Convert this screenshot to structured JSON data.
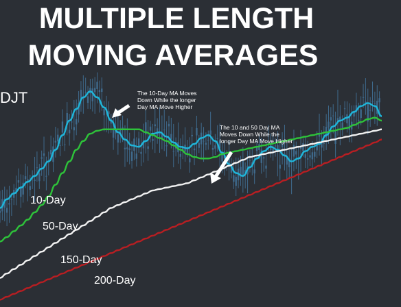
{
  "title_line1": "MULTIPLE LENGTH",
  "title_line2": "MOVING AVERAGES",
  "ticker": "DJT",
  "chart_data": {
    "type": "line",
    "title": "MULTIPLE LENGTH MOVING AVERAGES",
    "xlabel": "",
    "ylabel": "",
    "grid": false,
    "legend": "none",
    "colors": {
      "background": "#2b2f35",
      "candles": "#3f6a8c",
      "ma10": "#1fb5d9",
      "ma50": "#2ec23a",
      "ma150": "#f2f2f2",
      "ma200": "#b81e22"
    },
    "series": [
      {
        "name": "10-Day",
        "values": [
          8,
          14,
          18,
          22,
          26,
          30,
          35,
          40,
          48,
          58,
          68,
          76,
          84,
          88,
          84,
          77,
          68,
          60,
          55,
          51,
          50,
          54,
          59,
          60,
          57,
          53,
          50,
          49,
          52,
          56,
          58,
          54,
          46,
          38,
          32,
          30,
          36,
          42,
          47,
          50,
          48,
          44,
          40,
          42,
          47,
          50,
          52,
          58,
          64,
          68,
          70,
          74,
          78,
          80,
          78,
          71
        ]
      },
      {
        "name": "50-Day",
        "values": [
          -15,
          -12,
          -8,
          -4,
          0,
          5,
          10,
          16,
          24,
          32,
          40,
          48,
          54,
          59,
          61,
          62,
          62,
          62,
          62,
          62,
          62,
          60,
          58,
          56,
          54,
          51,
          48,
          45,
          43,
          42,
          42,
          43,
          45,
          46,
          47,
          48,
          49,
          50,
          51,
          52,
          53,
          54,
          55,
          56,
          57,
          58,
          59,
          60,
          61,
          62,
          63,
          65,
          67,
          69,
          70,
          68
        ]
      },
      {
        "name": "150-Day",
        "values": [
          -40,
          -37,
          -34,
          -31,
          -28,
          -25,
          -22,
          -19,
          -16,
          -13,
          -10,
          -7,
          -4,
          -1,
          2,
          5,
          8,
          10,
          12,
          14,
          16,
          18,
          20,
          21,
          22,
          23,
          24,
          25,
          27,
          29,
          31,
          33,
          35,
          37,
          39,
          41,
          43,
          44,
          45,
          46,
          47,
          48,
          49,
          50,
          51,
          52,
          53,
          54,
          55,
          56,
          57,
          58,
          59,
          60,
          61,
          62
        ]
      },
      {
        "name": "200-Day",
        "values": [
          -55,
          -53,
          -51,
          -49,
          -47,
          -45,
          -43,
          -41,
          -39,
          -37,
          -35,
          -33,
          -31,
          -29,
          -27,
          -25,
          -23,
          -21,
          -19,
          -17,
          -15,
          -13,
          -11,
          -9,
          -7,
          -5,
          -3,
          -1,
          1,
          3,
          5,
          7,
          9,
          11,
          13,
          15,
          17,
          19,
          21,
          23,
          25,
          27,
          29,
          31,
          33,
          35,
          37,
          39,
          41,
          43,
          45,
          47,
          49,
          51,
          53,
          55
        ]
      }
    ],
    "ylim": [
      -60,
      100
    ],
    "annotations": [
      {
        "lines": [
          "The 10-Day MA Moves",
          "Down While the longer",
          "Day MA Move Higher"
        ],
        "anchor": "upper-center"
      },
      {
        "lines": [
          "The 10 and 50 Day MA",
          "Moves Down While the",
          "longer Day MA Move Higher"
        ],
        "anchor": "center-right"
      }
    ],
    "ma_labels": [
      "10-Day",
      "50-Day",
      "150-Day",
      "200-Day"
    ]
  }
}
